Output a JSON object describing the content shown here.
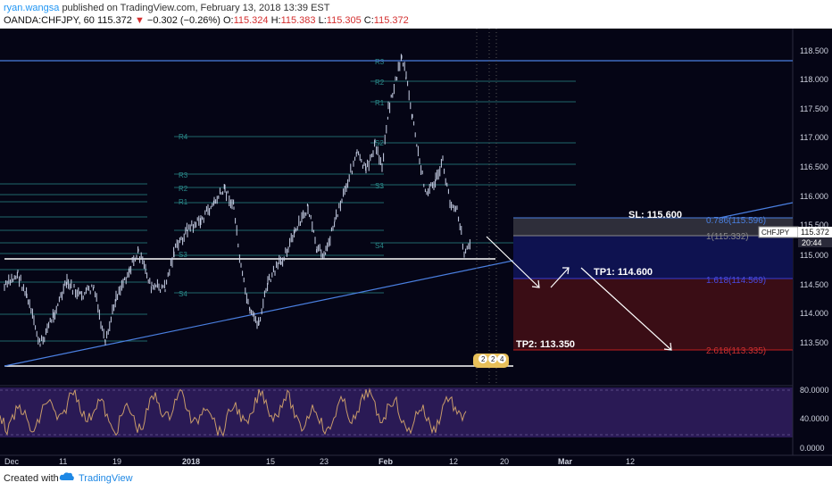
{
  "header": {
    "author": "ryan.wangsa",
    "published_text": "published on TradingView.com, February 13, 2018 13:39 EST",
    "symbol": "OANDA:CHFJPY, 60",
    "last": "115.372",
    "change": "−0.302 (−0.26%)",
    "o_label": "O:",
    "o": "115.324",
    "h_label": "H:",
    "h": "115.383",
    "l_label": "L:",
    "l": "115.305",
    "c_label": "C:",
    "c": "115.372"
  },
  "price_axis": {
    "ticks": [
      "118.500",
      "118.000",
      "117.500",
      "117.000",
      "116.500",
      "116.000",
      "115.500",
      "115.000",
      "114.500",
      "114.000",
      "113.500"
    ],
    "current_label": "CHFJPY",
    "current_value": "115.372",
    "countdown": "20:44"
  },
  "rsi_axis": {
    "ticks": [
      "80.0000",
      "40.0000",
      "0.0000"
    ]
  },
  "time_axis": {
    "ticks": [
      "Dec",
      "11",
      "19",
      "2018",
      "15",
      "23",
      "Feb",
      "12",
      "20",
      "Mar",
      "12"
    ]
  },
  "pivot_labels": [
    "R3",
    "R2",
    "R1",
    "R4",
    "R3",
    "R2",
    "R1",
    "S2",
    "S3",
    "S4",
    "S3",
    "S4"
  ],
  "annotations": {
    "sl": "SL: 115.600",
    "tp1": "TP1: 114.600",
    "tp2": "TP2: 113.350",
    "fib_0786": "0.786(115.596)",
    "fib_1": "1(115.332)",
    "fib_1618": "1.618(114.569)",
    "fib_2618": "2.618(113.335)"
  },
  "event_badges": [
    "2",
    "2",
    "4"
  ],
  "footer": {
    "created_with": "Created with",
    "brand": "TradingView"
  },
  "colors": {
    "background": "#050515",
    "candles": "#c9d1e8",
    "pivot": "#2a8a8a",
    "trendline": "#4a7fe0",
    "rsi_band": "#2a1a55",
    "rsi_line": "#c89b6a",
    "sl_box": "#2e2e3a",
    "tp1_box": "#0e1250",
    "tp2_box": "#3a0d15"
  }
}
